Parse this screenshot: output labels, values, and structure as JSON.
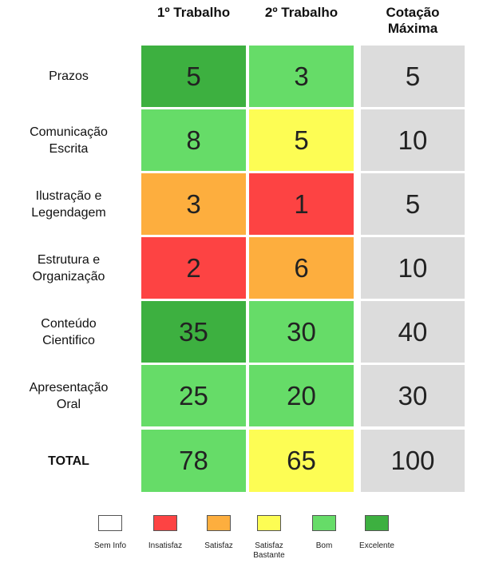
{
  "chart_data": {
    "type": "table",
    "columns": [
      "1º Trabalho",
      "2º Trabalho",
      "Cotação Máxima"
    ],
    "rows": [
      {
        "label": "Prazos",
        "values": [
          5,
          3,
          5
        ],
        "ratings": [
          "Excelente",
          "Bom",
          ""
        ]
      },
      {
        "label": "Comunicação Escrita",
        "values": [
          8,
          5,
          10
        ],
        "ratings": [
          "Bom",
          "Satisfaz Bastante",
          ""
        ]
      },
      {
        "label": "Ilustração e Legendagem",
        "values": [
          3,
          1,
          5
        ],
        "ratings": [
          "Satisfaz",
          "Insatisfaz",
          ""
        ]
      },
      {
        "label": "Estrutura e Organização",
        "values": [
          2,
          6,
          10
        ],
        "ratings": [
          "Insatisfaz",
          "Satisfaz",
          ""
        ]
      },
      {
        "label": "Conteúdo Cientifico",
        "values": [
          35,
          30,
          40
        ],
        "ratings": [
          "Excelente",
          "Bom",
          ""
        ]
      },
      {
        "label": "Apresentação Oral",
        "values": [
          25,
          20,
          30
        ],
        "ratings": [
          "Bom",
          "Bom",
          ""
        ]
      },
      {
        "label": "TOTAL",
        "values": [
          78,
          65,
          100
        ],
        "ratings": [
          "Bom",
          "Satisfaz Bastante",
          ""
        ]
      }
    ],
    "legend": [
      {
        "label": "Sem Info",
        "color": "#ffffff"
      },
      {
        "label": "Insatisfaz",
        "color": "#fd4343"
      },
      {
        "label": "Satisfaz",
        "color": "#fdae3e"
      },
      {
        "label": "Satisfaz Bastante",
        "color": "#fdfd54"
      },
      {
        "label": "Bom",
        "color": "#66dc68"
      },
      {
        "label": "Excelente",
        "color": "#3db040"
      }
    ],
    "max_column_color": "#dcdcdc"
  }
}
